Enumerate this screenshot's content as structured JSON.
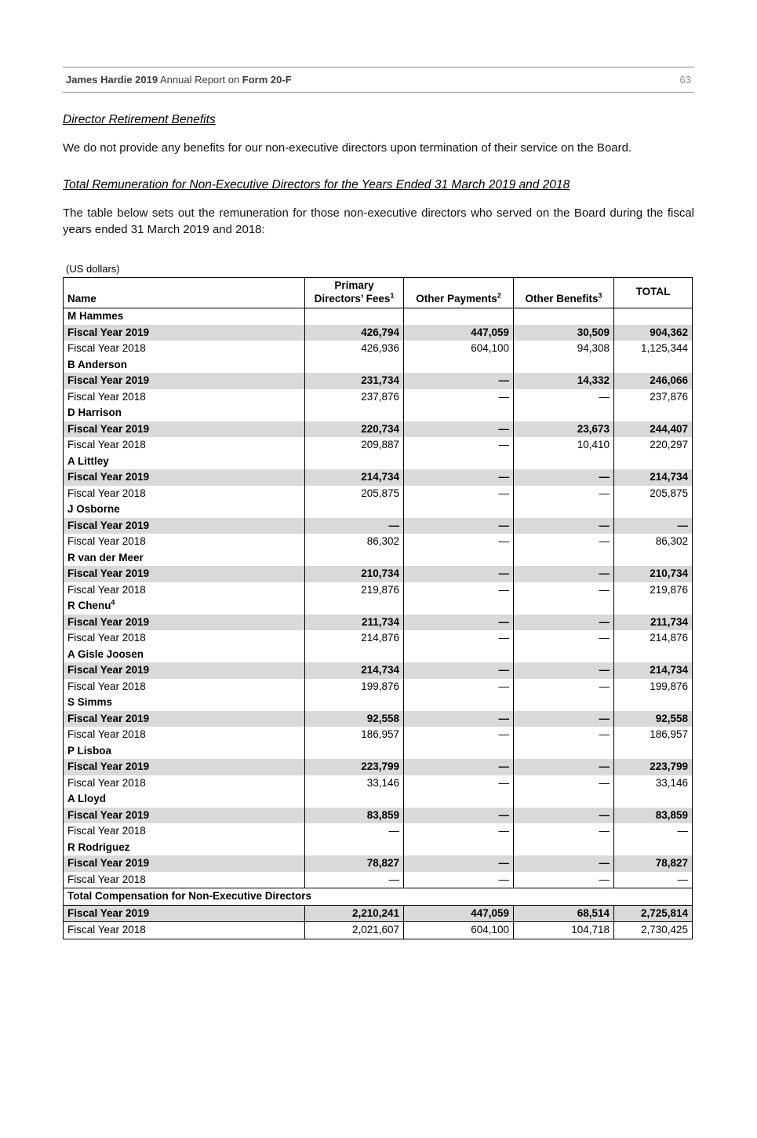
{
  "colors": {
    "row_shading": "#d9d9d9",
    "rule_gray": "#8a8a8a"
  },
  "header": {
    "brand_bold": "James Hardie 2019",
    "middle": " Annual Report on ",
    "form_bold": "Form 20-F",
    "page_number": "63"
  },
  "content": {
    "heading1": "Director Retirement Benefits",
    "para1": "We do not provide any benefits for our non-executive directors upon termination of their service on the Board.",
    "heading2": "Total Remuneration for Non-Executive Directors for the Years Ended 31 March 2019 and 2018",
    "para2": "The table below sets out the remuneration for those non-executive directors who served on the Board during the fiscal years ended 31 March 2019 and 2018:",
    "units_label": "(US dollars)"
  },
  "table": {
    "header": {
      "name": "Name",
      "primary_line1": "Primary",
      "primary_line2": "Directors’ Fees",
      "primary_sup": "1",
      "other_payments": "Other Payments",
      "other_payments_sup": "2",
      "other_benefits": "Other Benefits",
      "other_benefits_sup": "3",
      "total": "TOTAL"
    },
    "groups": [
      {
        "name": "M Hammes",
        "sup": "",
        "rows": [
          {
            "label": "Fiscal Year 2019",
            "shaded": true,
            "values": [
              "426,794",
              "447,059",
              "30,509",
              "904,362"
            ]
          },
          {
            "label": "Fiscal Year 2018",
            "shaded": false,
            "values": [
              "426,936",
              "604,100",
              "94,308",
              "1,125,344"
            ]
          }
        ]
      },
      {
        "name": "B Anderson",
        "sup": "",
        "rows": [
          {
            "label": "Fiscal Year 2019",
            "shaded": true,
            "values": [
              "231,734",
              "—",
              "14,332",
              "246,066"
            ]
          },
          {
            "label": "Fiscal Year 2018",
            "shaded": false,
            "values": [
              "237,876",
              "—",
              "—",
              "237,876"
            ]
          }
        ]
      },
      {
        "name": "D Harrison",
        "sup": "",
        "rows": [
          {
            "label": "Fiscal Year 2019",
            "shaded": true,
            "values": [
              "220,734",
              "—",
              "23,673",
              "244,407"
            ]
          },
          {
            "label": "Fiscal Year 2018",
            "shaded": false,
            "values": [
              "209,887",
              "—",
              "10,410",
              "220,297"
            ]
          }
        ]
      },
      {
        "name": "A Littley",
        "sup": "",
        "rows": [
          {
            "label": "Fiscal Year 2019",
            "shaded": true,
            "values": [
              "214,734",
              "—",
              "—",
              "214,734"
            ]
          },
          {
            "label": "Fiscal Year 2018",
            "shaded": false,
            "values": [
              "205,875",
              "—",
              "—",
              "205,875"
            ]
          }
        ]
      },
      {
        "name": "J Osborne",
        "sup": "",
        "rows": [
          {
            "label": "Fiscal Year 2019",
            "shaded": true,
            "values": [
              "—",
              "—",
              "—",
              "—"
            ]
          },
          {
            "label": "Fiscal Year 2018",
            "shaded": false,
            "values": [
              "86,302",
              "—",
              "—",
              "86,302"
            ]
          }
        ]
      },
      {
        "name": "R van der Meer",
        "sup": "",
        "rows": [
          {
            "label": "Fiscal Year 2019",
            "shaded": true,
            "values": [
              "210,734",
              "—",
              "—",
              "210,734"
            ]
          },
          {
            "label": "Fiscal Year 2018",
            "shaded": false,
            "values": [
              "219,876",
              "—",
              "—",
              "219,876"
            ]
          }
        ]
      },
      {
        "name": "R Chenu",
        "sup": "4",
        "rows": [
          {
            "label": "Fiscal Year 2019",
            "shaded": true,
            "values": [
              "211,734",
              "—",
              "—",
              "211,734"
            ]
          },
          {
            "label": "Fiscal Year 2018",
            "shaded": false,
            "values": [
              "214,876",
              "—",
              "—",
              "214,876"
            ]
          }
        ]
      },
      {
        "name": "A Gisle Joosen",
        "sup": "",
        "rows": [
          {
            "label": "Fiscal Year 2019",
            "shaded": true,
            "values": [
              "214,734",
              "—",
              "—",
              "214,734"
            ]
          },
          {
            "label": "Fiscal Year 2018",
            "shaded": false,
            "values": [
              "199,876",
              "—",
              "—",
              "199,876"
            ]
          }
        ]
      },
      {
        "name": "S Simms",
        "sup": "",
        "rows": [
          {
            "label": "Fiscal Year 2019",
            "shaded": true,
            "values": [
              "92,558",
              "—",
              "—",
              "92,558"
            ]
          },
          {
            "label": "Fiscal Year 2018",
            "shaded": false,
            "values": [
              "186,957",
              "—",
              "—",
              "186,957"
            ]
          }
        ]
      },
      {
        "name": "P Lisboa",
        "sup": "",
        "rows": [
          {
            "label": "Fiscal Year 2019",
            "shaded": true,
            "values": [
              "223,799",
              "—",
              "—",
              "223,799"
            ]
          },
          {
            "label": "Fiscal Year 2018",
            "shaded": false,
            "values": [
              "33,146",
              "—",
              "—",
              "33,146"
            ]
          }
        ]
      },
      {
        "name": "A Lloyd",
        "sup": "",
        "rows": [
          {
            "label": "Fiscal Year 2019",
            "shaded": true,
            "values": [
              "83,859",
              "—",
              "—",
              "83,859"
            ]
          },
          {
            "label": "Fiscal Year 2018",
            "shaded": false,
            "values": [
              "—",
              "—",
              "—",
              "—"
            ]
          }
        ]
      },
      {
        "name": "R Rodriguez",
        "sup": "",
        "rows": [
          {
            "label": "Fiscal Year 2019",
            "shaded": true,
            "values": [
              "78,827",
              "—",
              "—",
              "78,827"
            ]
          },
          {
            "label": "Fiscal Year 2018",
            "shaded": false,
            "values": [
              "—",
              "—",
              "—",
              "—"
            ]
          }
        ]
      }
    ],
    "total_section": {
      "label": "Total Compensation for Non-Executive Directors",
      "rows": [
        {
          "label": "Fiscal Year 2019",
          "shaded": true,
          "values": [
            "2,210,241",
            "447,059",
            "68,514",
            "2,725,814"
          ]
        },
        {
          "label": "Fiscal Year 2018",
          "shaded": false,
          "values": [
            "2,021,607",
            "604,100",
            "104,718",
            "2,730,425"
          ]
        }
      ]
    }
  }
}
